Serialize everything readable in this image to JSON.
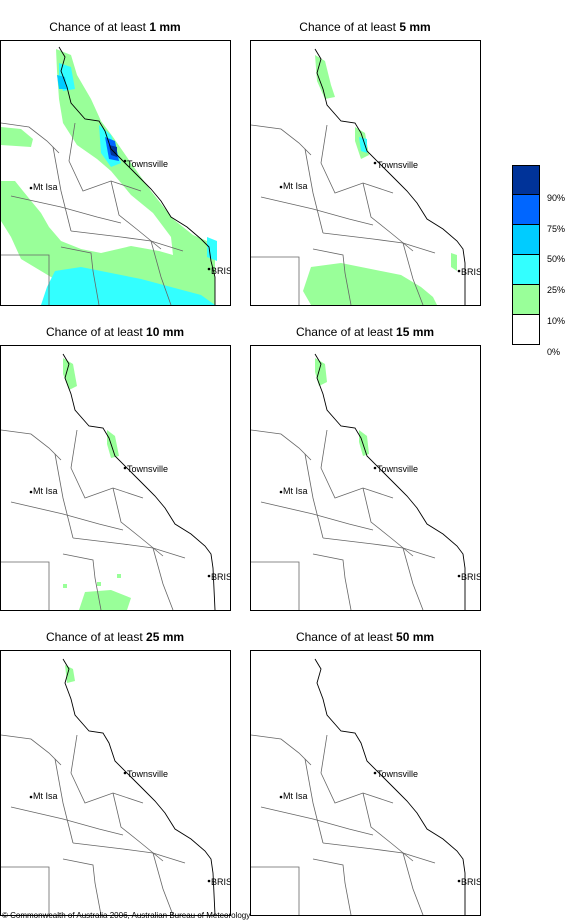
{
  "panels": [
    {
      "prefix": "Chance of at least ",
      "amount": "1 mm"
    },
    {
      "prefix": "Chance of at least ",
      "amount": "5 mm"
    },
    {
      "prefix": "Chance of at least ",
      "amount": "10 mm"
    },
    {
      "prefix": "Chance of at least ",
      "amount": "15 mm"
    },
    {
      "prefix": "Chance of at least ",
      "amount": "25 mm"
    },
    {
      "prefix": "Chance of at least ",
      "amount": "50 mm"
    }
  ],
  "places": {
    "townsville": "Townsville",
    "mt_isa": "Mt Isa",
    "bris": "BRIS"
  },
  "legend": {
    "labels": [
      "90%",
      "75%",
      "50%",
      "25%",
      "10%",
      "0%"
    ],
    "colors": [
      "#003399",
      "#0066ff",
      "#00ccff",
      "#33ffff",
      "#99ff99",
      "#ffffff"
    ]
  },
  "copyright": "© Commonwealth of Australia 2006, Australian Bureau of Meteorology"
}
